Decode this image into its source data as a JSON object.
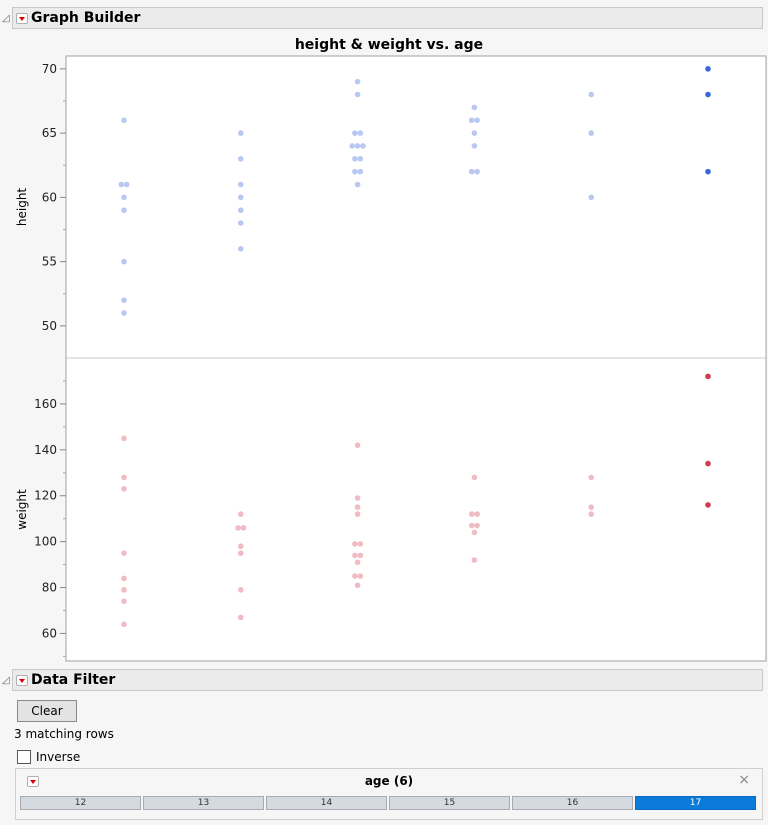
{
  "graph_builder": {
    "title": "Graph Builder"
  },
  "chart_data": {
    "type": "scatter",
    "title": "height & weight vs. age",
    "xlabel": "",
    "categories": [
      "12",
      "13",
      "14",
      "15",
      "16",
      "17"
    ],
    "panels": [
      {
        "ylabel": "height",
        "ylim": [
          47.5,
          71
        ],
        "ticks": [
          50,
          55,
          60,
          65,
          70
        ],
        "series": {
          "12": [
            66,
            61,
            61,
            60,
            59,
            55,
            52,
            51
          ],
          "13": [
            65,
            63,
            61,
            60,
            59,
            58,
            56
          ],
          "14": [
            69,
            68,
            65,
            65,
            64,
            64,
            64,
            63,
            63,
            62,
            62,
            61
          ],
          "15": [
            67,
            66,
            66,
            65,
            64,
            62,
            62
          ],
          "16": [
            68,
            65,
            60
          ],
          "17": [
            70,
            68,
            62
          ]
        },
        "color": "#b8c8f0",
        "selected_color": "#3b66d8"
      },
      {
        "ylabel": "weight",
        "ylim": [
          48,
          180
        ],
        "ticks": [
          60,
          80,
          100,
          120,
          140,
          160
        ],
        "series": {
          "12": [
            145,
            128,
            123,
            95,
            84,
            79,
            74,
            64
          ],
          "13": [
            112,
            106,
            106,
            98,
            95,
            79,
            67
          ],
          "14": [
            142,
            119,
            115,
            112,
            99,
            99,
            94,
            94,
            91,
            85,
            85,
            81
          ],
          "15": [
            128,
            112,
            112,
            107,
            107,
            104,
            92
          ],
          "16": [
            128,
            115,
            112
          ],
          "17": [
            172,
            134,
            116
          ]
        },
        "color": "#f0bcc4",
        "selected_color": "#d23a4e"
      }
    ],
    "selected_category": "17"
  },
  "data_filter": {
    "title": "Data Filter",
    "clear_label": "Clear",
    "matching_rows": "3 matching rows",
    "inverse_label": "Inverse",
    "inverse_checked": false,
    "column_title": "age (6)",
    "levels": [
      "12",
      "13",
      "14",
      "15",
      "16",
      "17"
    ],
    "selected_level": "17",
    "close_icon": "×"
  }
}
